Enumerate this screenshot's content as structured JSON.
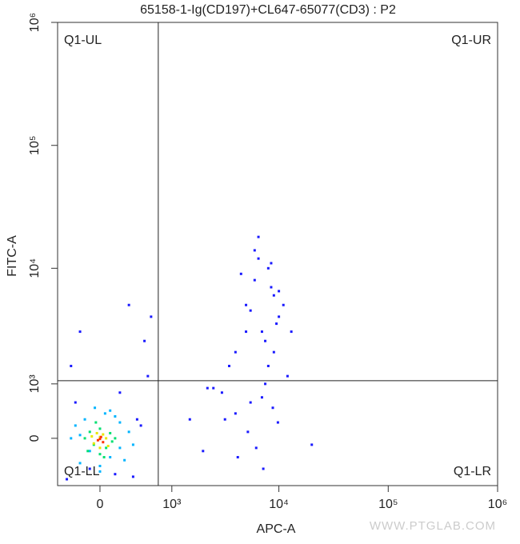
{
  "chart_data": {
    "type": "scatter",
    "title": "65158-1-Ig(CD197)+CL647-65077(CD3) : P2",
    "x_label": "APC-A",
    "y_label": "FITC-A",
    "xscale": "biexponential",
    "yscale": "biexponential",
    "xlim": [
      -470,
      1000000
    ],
    "ylim": [
      -835,
      1000000
    ],
    "xticks": [
      0,
      {
        "value": 1000,
        "label": "10³"
      },
      {
        "value": 10000,
        "label": "10⁴"
      },
      {
        "value": 100000,
        "label": "10⁵"
      },
      {
        "value": 1000000,
        "label": "10⁶"
      }
    ],
    "yticks": [
      0,
      {
        "value": 1000,
        "label": "10³"
      },
      {
        "value": 10000,
        "label": "10⁴"
      },
      {
        "value": 100000,
        "label": "10⁵"
      },
      {
        "value": 1000000,
        "label": "10⁶"
      }
    ],
    "gate": {
      "x": 722,
      "y": 1080
    },
    "quadrants": {
      "ul": "Q1-UL",
      "ur": "Q1-UR",
      "ll": "Q1-LL",
      "lr": "Q1-LR"
    },
    "watermark": "WWW.PTGLAB.COM",
    "series": [
      {
        "color": "#1a1aff",
        "x": [
          3000,
          4000,
          5000,
          6000,
          7000,
          8000,
          9000,
          10000,
          12000,
          4500,
          5500,
          6500,
          7500,
          8500,
          9500,
          3500,
          11000,
          6000,
          7000,
          8000,
          5000,
          4000,
          9000,
          10000,
          6500,
          7500,
          2500,
          13000,
          5500,
          8500,
          3200,
          4200,
          5200,
          7200,
          9800,
          6200,
          8800,
          -300,
          -200,
          300,
          500,
          600,
          200,
          -100,
          400,
          150,
          450,
          1500,
          2000,
          2200,
          20000,
          -350,
          350,
          -250,
          550
        ],
        "values": [
          800,
          2000,
          5000,
          8000,
          3000,
          1500,
          6000,
          4000,
          1200,
          9000,
          600,
          12000,
          2500,
          7000,
          3500,
          1500,
          5000,
          14000,
          700,
          10000,
          3000,
          400,
          2000,
          6500,
          18000,
          1000,
          900,
          3000,
          4500,
          11000,
          300,
          -300,
          100,
          -500,
          250,
          -150,
          500,
          1500,
          3000,
          5000,
          2500,
          4000,
          800,
          -500,
          300,
          -600,
          200,
          300,
          -200,
          900,
          -100,
          -700,
          -650,
          600,
          1200
        ]
      },
      {
        "color": "#00b4ff",
        "x": [
          -200,
          -100,
          0,
          100,
          200,
          300,
          -250,
          -150,
          50,
          150,
          250,
          -50,
          0,
          100,
          -300,
          350,
          200,
          -200
        ],
        "values": [
          -400,
          -200,
          -450,
          -300,
          -150,
          100,
          200,
          300,
          400,
          350,
          -350,
          500,
          -550,
          450,
          0,
          -100,
          250,
          50
        ]
      },
      {
        "color": "#00e070",
        "x": [
          -120,
          -60,
          0,
          60,
          120,
          -100,
          0,
          100,
          -40,
          40,
          150,
          -150
        ],
        "values": [
          -200,
          -100,
          -250,
          -150,
          -50,
          100,
          150,
          80,
          250,
          -300,
          0,
          0
        ]
      },
      {
        "color": "#e8e800",
        "x": [
          -60,
          0,
          60,
          -30,
          30,
          0,
          80,
          -80
        ],
        "values": [
          -80,
          -150,
          0,
          80,
          60,
          20,
          -120,
          30
        ]
      },
      {
        "color": "#ff3000",
        "x": [
          -20,
          10,
          30,
          0
        ],
        "values": [
          -30,
          20,
          -60,
          -10
        ]
      }
    ]
  }
}
